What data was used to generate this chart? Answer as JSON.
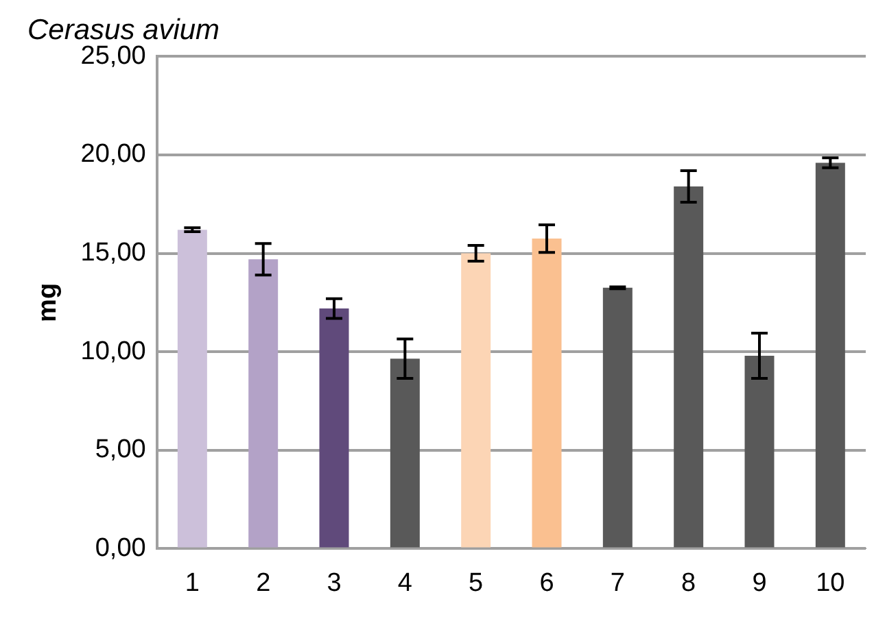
{
  "chart_data": {
    "type": "bar",
    "title": "Cerasus avium",
    "ylabel": "mg",
    "categories": [
      "1",
      "2",
      "3",
      "4",
      "5",
      "6",
      "7",
      "8",
      "9",
      "10"
    ],
    "values": [
      16.2,
      14.7,
      12.2,
      9.65,
      15.0,
      15.75,
      13.25,
      18.4,
      9.8,
      19.6
    ],
    "errors": [
      0.1,
      0.8,
      0.5,
      1.0,
      0.4,
      0.7,
      0.05,
      0.8,
      1.15,
      0.25
    ],
    "colors": [
      "#ccc0da",
      "#b3a2c7",
      "#604a7b",
      "#595959",
      "#fcd5b5",
      "#fac090",
      "#595959",
      "#595959",
      "#595959",
      "#595959"
    ],
    "ylim": [
      0,
      25
    ],
    "yticks": [
      {
        "value": 0,
        "label": "0,00"
      },
      {
        "value": 5,
        "label": "5,00"
      },
      {
        "value": 10,
        "label": "10,00"
      },
      {
        "value": 15,
        "label": "15,00"
      },
      {
        "value": 20,
        "label": "20,00"
      },
      {
        "value": 25,
        "label": "25,00"
      }
    ],
    "grid": "y",
    "legend": false
  }
}
